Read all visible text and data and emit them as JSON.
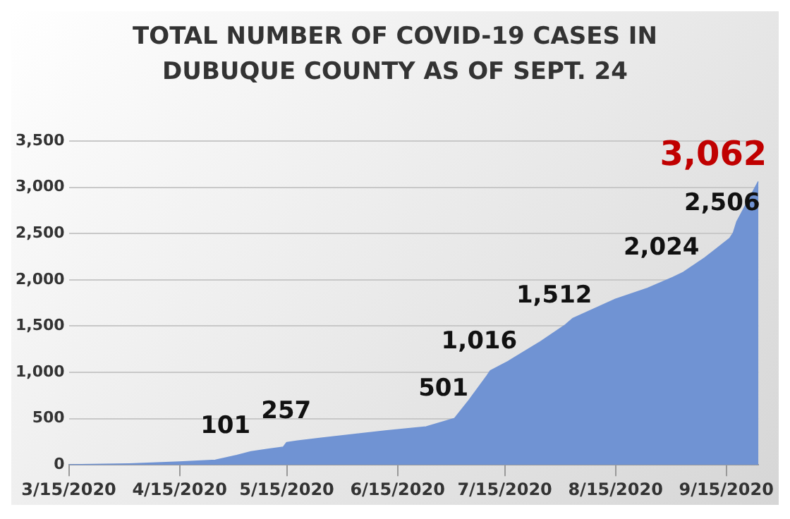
{
  "chart_data": {
    "type": "area",
    "title": "TOTAL NUMBER OF COVID-19 CASES IN DUBUQUE COUNTY AS OF SEPT. 24",
    "x": [
      "2020-03-15",
      "2020-04-01",
      "2020-04-15",
      "2020-04-25",
      "2020-05-01",
      "2020-05-05",
      "2020-05-10",
      "2020-05-14",
      "2020-05-15",
      "2020-05-18",
      "2020-05-25",
      "2020-06-01",
      "2020-06-12",
      "2020-06-23",
      "2020-07-01",
      "2020-07-05",
      "2020-07-10",
      "2020-07-11",
      "2020-07-16",
      "2020-07-25",
      "2020-08-01",
      "2020-08-03",
      "2020-08-15",
      "2020-08-24",
      "2020-08-31",
      "2020-09-03",
      "2020-09-09",
      "2020-09-16",
      "2020-09-17",
      "2020-09-18",
      "2020-09-24"
    ],
    "series": [
      {
        "color": "#7093d3",
        "values": [
          0,
          10,
          30,
          50,
          101,
          140,
          170,
          190,
          240,
          257,
          290,
          320,
          368,
          410,
          501,
          697,
          960,
          1016,
          1118,
          1329,
          1512,
          1579,
          1790,
          1908,
          2024,
          2079,
          2237,
          2447,
          2506,
          2630,
          3062
        ]
      }
    ],
    "xlim": [
      "2020-03-15",
      "2020-09-24"
    ],
    "xticks": [
      {
        "value": "2020-03-15",
        "label": "3/15/2020"
      },
      {
        "value": "2020-04-15",
        "label": "4/15/2020"
      },
      {
        "value": "2020-05-15",
        "label": "5/15/2020"
      },
      {
        "value": "2020-06-15",
        "label": "6/15/2020"
      },
      {
        "value": "2020-07-15",
        "label": "7/15/2020"
      },
      {
        "value": "2020-08-15",
        "label": "8/15/2020"
      },
      {
        "value": "2020-09-15",
        "label": "9/15/2020"
      }
    ],
    "ylim": [
      0,
      3500
    ],
    "yticks": [
      {
        "value": 0,
        "label": "0"
      },
      {
        "value": 500,
        "label": "500"
      },
      {
        "value": 1000,
        "label": "1,000"
      },
      {
        "value": 1500,
        "label": "1,500"
      },
      {
        "value": 2000,
        "label": "2,000"
      },
      {
        "value": 2500,
        "label": "2,500"
      },
      {
        "value": 3000,
        "label": "3,000"
      },
      {
        "value": 3500,
        "label": "3,500"
      }
    ],
    "grid": "y",
    "legend": false,
    "annotations": [
      {
        "text": "101",
        "x": "2020-05-01",
        "y": 101
      },
      {
        "text": "257",
        "x": "2020-05-18",
        "y": 257
      },
      {
        "text": "501",
        "x": "2020-07-01",
        "y": 501
      },
      {
        "text": "1,016",
        "x": "2020-07-11",
        "y": 1016
      },
      {
        "text": "1,512",
        "x": "2020-08-01",
        "y": 1512
      },
      {
        "text": "2,024",
        "x": "2020-08-31",
        "y": 2024
      },
      {
        "text": "2,506",
        "x": "2020-09-17",
        "y": 2506
      },
      {
        "text": "3,062",
        "x": "2020-09-24",
        "y": 3062
      }
    ]
  }
}
